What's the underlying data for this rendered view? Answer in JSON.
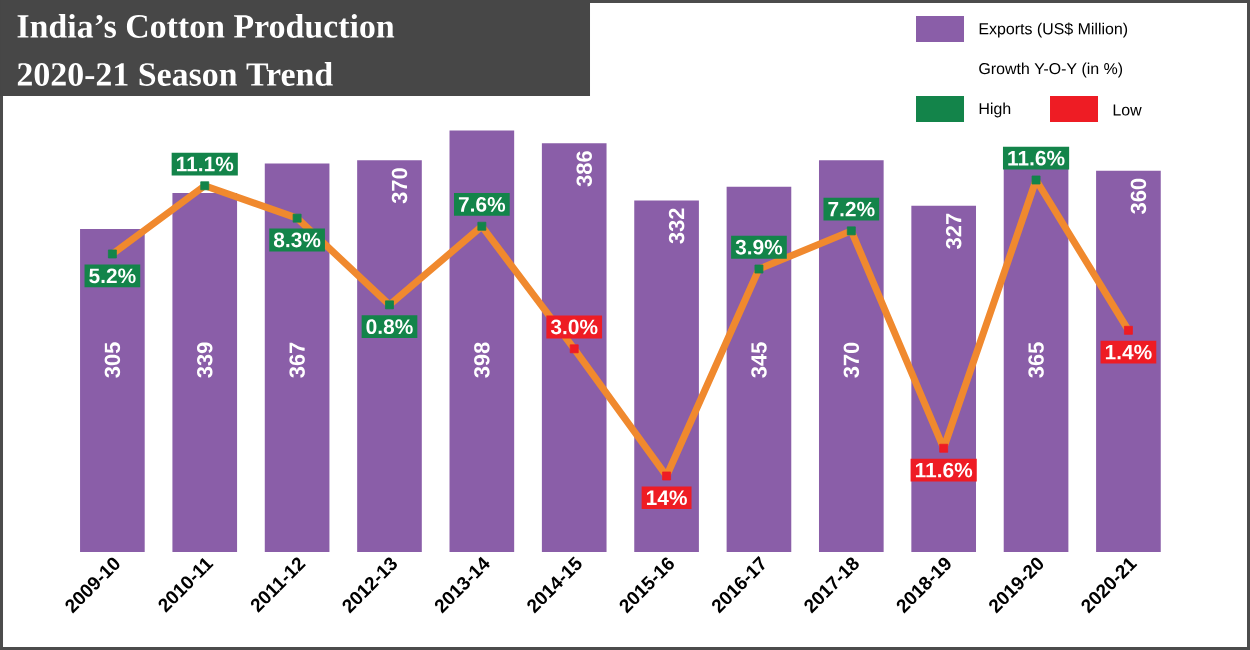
{
  "chart_data": {
    "type": "bar",
    "title": "India’s Cotton Production",
    "subtitle": "2020-21 Season Trend",
    "categories": [
      "2009-10",
      "2010-11",
      "2011-12",
      "2012-13",
      "2013-14",
      "2014-15",
      "2015-16",
      "2016-17",
      "2017-18",
      "2018-19",
      "2019-20",
      "2020-21"
    ],
    "legend": "top right",
    "legend_title": "Growth Y-O-Y (in %)",
    "tick_labels": "x",
    "series": [
      {
        "name": "Exports (US$ Million)",
        "color": "#8a5ea8",
        "values": [
          305,
          339,
          367,
          370,
          398,
          386,
          332,
          345,
          370,
          327,
          365,
          360
        ],
        "value_labels": [
          "305",
          "339",
          "367",
          "370",
          "398",
          "386",
          "332",
          "345",
          "370",
          "327",
          "365",
          "360"
        ]
      },
      {
        "type": "line",
        "axis": "y2",
        "color": "#f0892e",
        "values": [
          5.2,
          11.1,
          8.3,
          0.8,
          7.6,
          -3.0,
          -14,
          3.9,
          7.2,
          -11.6,
          11.6,
          -1.4
        ]
      },
      {
        "name": "High",
        "type": "scatter",
        "axis": "y2",
        "marker": "square",
        "color": "#13844a",
        "values": [
          5.2,
          11.1,
          8.3,
          0.8,
          7.6,
          null,
          null,
          3.9,
          7.2,
          null,
          11.6,
          null
        ],
        "value_labels": [
          "5.2%",
          "11.1%",
          "8.3%",
          "0.8%",
          "7.6%",
          null,
          null,
          "3.9%",
          "7.2%",
          null,
          "11.6%",
          null
        ]
      },
      {
        "name": "Low",
        "type": "scatter",
        "axis": "y2",
        "marker": "square",
        "color": "#ee1c24",
        "values": [
          null,
          null,
          null,
          null,
          null,
          -3.0,
          -14,
          null,
          null,
          -11.6,
          null,
          -1.4
        ]
      }
    ],
    "annotations": [
      "3.0%",
      "14%",
      "11.6%",
      "1.4%"
    ]
  }
}
